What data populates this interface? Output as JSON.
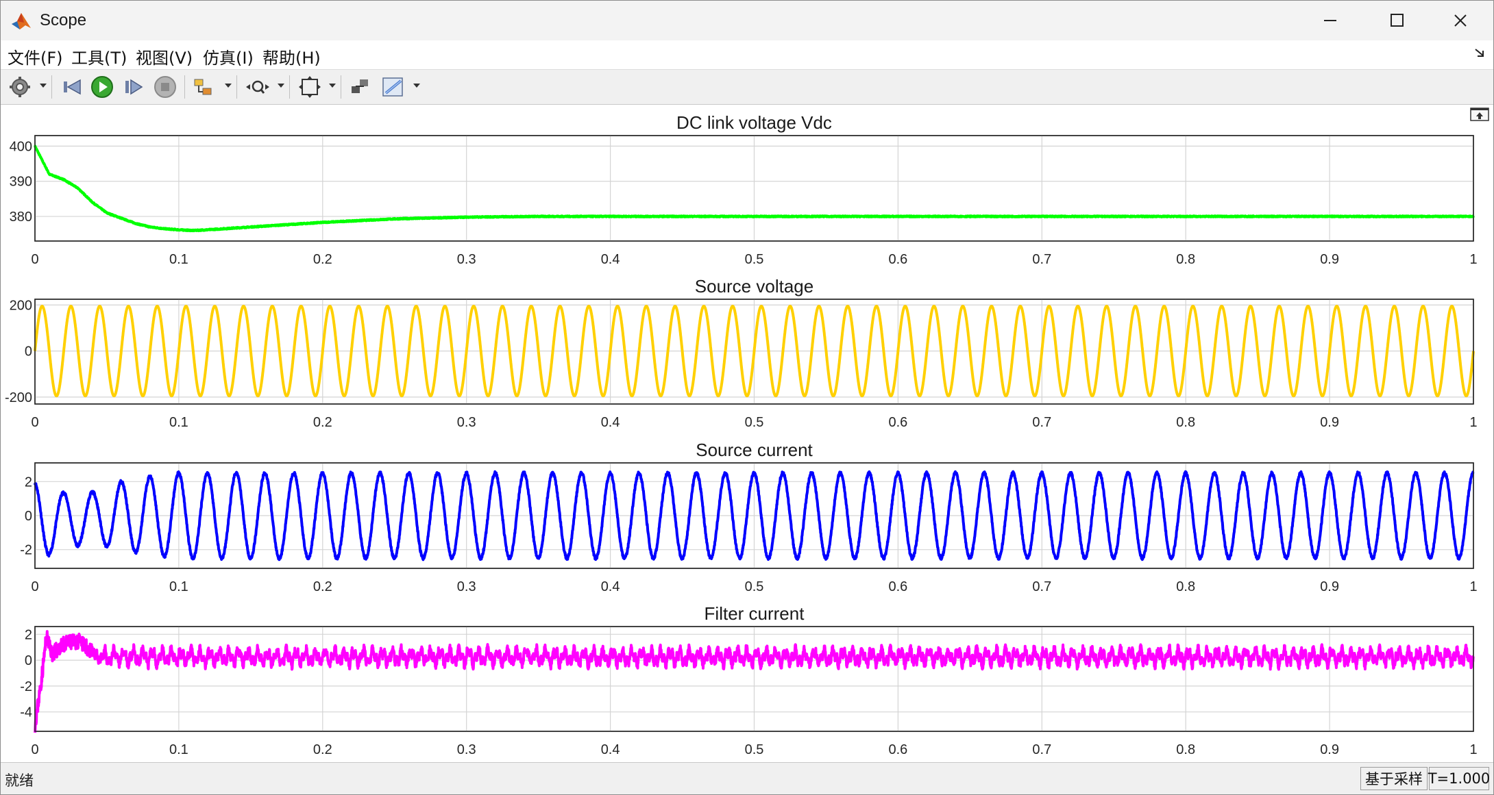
{
  "window": {
    "title": "Scope"
  },
  "menu": [
    {
      "label": "文件(F)"
    },
    {
      "label": "工具(T)"
    },
    {
      "label": "视图(V)"
    },
    {
      "label": "仿真(I)"
    },
    {
      "label": "帮助(H)"
    }
  ],
  "toolbar": {
    "icons": [
      "gear-icon",
      "step-back-icon",
      "run-icon",
      "step-forward-icon",
      "stop-icon",
      "block-select-icon",
      "zoom-icon",
      "autoscale-icon",
      "highlight-block-icon",
      "measure-icon"
    ]
  },
  "status": {
    "left": "就绪",
    "sampling": "基于采样",
    "time": "T=1.000"
  },
  "chart_data": [
    {
      "type": "line",
      "title": "DC link voltage Vdc",
      "xlim": [
        0,
        1
      ],
      "ylim": [
        373,
        403
      ],
      "xticks": [
        0,
        0.1,
        0.2,
        0.3,
        0.4,
        0.5,
        0.6,
        0.7,
        0.8,
        0.9,
        1
      ],
      "yticks": [
        380,
        390,
        400
      ],
      "grid": true,
      "color": "#00ff00",
      "series": [
        {
          "x": [
            0,
            0.005,
            0.01,
            0.02,
            0.03,
            0.04,
            0.05,
            0.06,
            0.07,
            0.08,
            0.09,
            0.1,
            0.11,
            0.12,
            0.15,
            0.2,
            0.25,
            0.3,
            0.35,
            0.4,
            0.5,
            0.6,
            0.7,
            0.8,
            0.9,
            1.0
          ],
          "y": [
            400,
            396,
            392,
            390.5,
            388,
            384,
            381,
            379.5,
            378,
            377,
            376.5,
            376.2,
            376,
            376.2,
            377,
            378.3,
            379.3,
            379.8,
            380,
            380,
            380,
            380,
            380,
            380,
            380,
            380
          ]
        }
      ]
    },
    {
      "type": "line",
      "title": "Source voltage",
      "xlim": [
        0,
        1
      ],
      "ylim": [
        -230,
        225
      ],
      "xticks": [
        0,
        0.1,
        0.2,
        0.3,
        0.4,
        0.5,
        0.6,
        0.7,
        0.8,
        0.9,
        1
      ],
      "yticks": [
        -200,
        0,
        200
      ],
      "grid": true,
      "color": "#ffd000",
      "amplitude": 195,
      "frequency_hz": 50
    },
    {
      "type": "line",
      "title": "Source current",
      "xlim": [
        0,
        1
      ],
      "ylim": [
        -3.1,
        3.1
      ],
      "xticks": [
        0,
        0.1,
        0.2,
        0.3,
        0.4,
        0.5,
        0.6,
        0.7,
        0.8,
        0.9,
        1
      ],
      "yticks": [
        -2,
        0,
        2
      ],
      "grid": true,
      "color": "#0000ff",
      "steady_amplitude": 2.5,
      "frequency_hz": 50,
      "envelope": {
        "t": [
          0,
          0.02,
          0.04,
          0.06,
          0.08,
          0.1
        ],
        "amp": [
          2.3,
          1.6,
          1.5,
          2.0,
          2.3,
          2.5
        ]
      }
    },
    {
      "type": "line",
      "title": "Filter current",
      "xlim": [
        0,
        1
      ],
      "ylim": [
        -5.5,
        2.6
      ],
      "xticks": [
        0,
        0.1,
        0.2,
        0.3,
        0.4,
        0.5,
        0.6,
        0.7,
        0.8,
        0.9,
        1
      ],
      "yticks": [
        -4,
        -2,
        0,
        2
      ],
      "grid": true,
      "color": "#ff00ff",
      "steady_amplitude": 0.7,
      "transient": {
        "t": [
          0,
          0.004,
          0.008,
          0.012,
          0.02,
          0.03,
          0.04
        ],
        "y": [
          -5,
          -2,
          1.8,
          0.5,
          1.2,
          1.5,
          0.6
        ]
      }
    }
  ]
}
